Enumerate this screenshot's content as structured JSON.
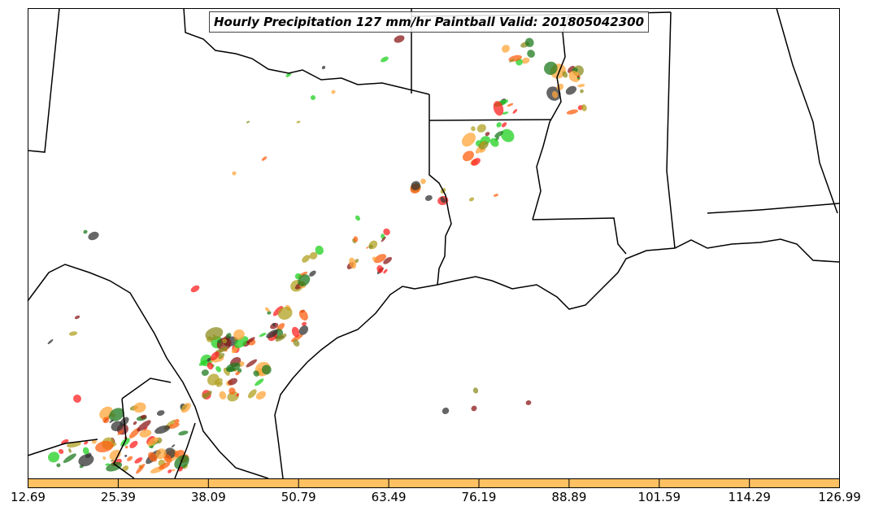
{
  "title": "Hourly Precipitation 127 mm/hr Paintball Valid: 201805042300",
  "colorbar": {
    "color": "#ffc162",
    "tick_labels": [
      "12.69",
      "25.39",
      "38.09",
      "50.79",
      "63.49",
      "76.19",
      "88.89",
      "101.59",
      "114.29",
      "126.99"
    ]
  },
  "palette": [
    "#ffa53a",
    "#ff2020",
    "#8b1a1a",
    "#20d020",
    "#1e7a1e",
    "#8c8c20",
    "#333333",
    "#b0a020",
    "#ff6010"
  ]
}
